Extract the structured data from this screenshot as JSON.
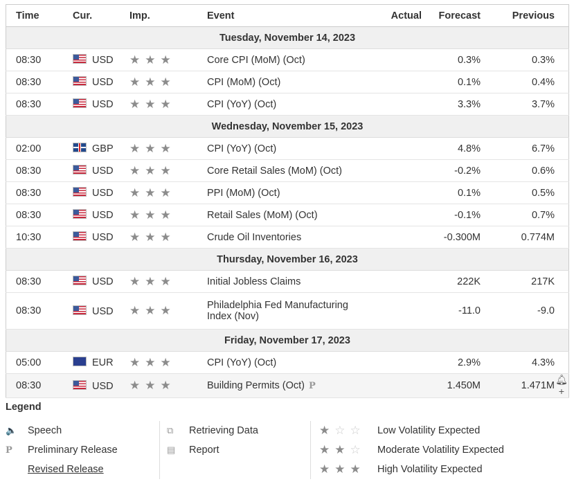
{
  "columns": {
    "time": "Time",
    "cur": "Cur.",
    "imp": "Imp.",
    "event": "Event",
    "actual": "Actual",
    "forecast": "Forecast",
    "previous": "Previous"
  },
  "days": [
    {
      "date": "Tuesday, November 14, 2023",
      "events": [
        {
          "time": "08:30",
          "flag": "us",
          "cur": "USD",
          "stars": "★★★",
          "event": "Core CPI (MoM) (Oct)",
          "actual": "",
          "forecast": "0.3%",
          "previous": "0.3%"
        },
        {
          "time": "08:30",
          "flag": "us",
          "cur": "USD",
          "stars": "★★★",
          "event": "CPI (MoM) (Oct)",
          "actual": "",
          "forecast": "0.1%",
          "previous": "0.4%"
        },
        {
          "time": "08:30",
          "flag": "us",
          "cur": "USD",
          "stars": "★★★",
          "event": "CPI (YoY) (Oct)",
          "actual": "",
          "forecast": "3.3%",
          "previous": "3.7%"
        }
      ]
    },
    {
      "date": "Wednesday, November 15, 2023",
      "events": [
        {
          "time": "02:00",
          "flag": "gb",
          "cur": "GBP",
          "stars": "★★★",
          "event": "CPI (YoY) (Oct)",
          "actual": "",
          "forecast": "4.8%",
          "previous": "6.7%"
        },
        {
          "time": "08:30",
          "flag": "us",
          "cur": "USD",
          "stars": "★★★",
          "event": "Core Retail Sales (MoM) (Oct)",
          "actual": "",
          "forecast": "-0.2%",
          "previous": "0.6%"
        },
        {
          "time": "08:30",
          "flag": "us",
          "cur": "USD",
          "stars": "★★★",
          "event": "PPI (MoM) (Oct)",
          "actual": "",
          "forecast": "0.1%",
          "previous": "0.5%"
        },
        {
          "time": "08:30",
          "flag": "us",
          "cur": "USD",
          "stars": "★★★",
          "event": "Retail Sales (MoM) (Oct)",
          "actual": "",
          "forecast": "-0.1%",
          "previous": "0.7%"
        },
        {
          "time": "10:30",
          "flag": "us",
          "cur": "USD",
          "stars": "★★★",
          "event": "Crude Oil Inventories",
          "actual": "",
          "forecast": "-0.300M",
          "previous": "0.774M"
        }
      ]
    },
    {
      "date": "Thursday, November 16, 2023",
      "events": [
        {
          "time": "08:30",
          "flag": "us",
          "cur": "USD",
          "stars": "★★★",
          "event": "Initial Jobless Claims",
          "actual": "",
          "forecast": "222K",
          "previous": "217K"
        },
        {
          "time": "08:30",
          "flag": "us",
          "cur": "USD",
          "stars": "★★★",
          "event": "Philadelphia Fed Manufacturing Index (Nov)",
          "actual": "",
          "forecast": "-11.0",
          "previous": "-9.0"
        }
      ]
    },
    {
      "date": "Friday, November 17, 2023",
      "events": [
        {
          "time": "05:00",
          "flag": "eu",
          "cur": "EUR",
          "stars": "★★★",
          "event": "CPI (YoY) (Oct)",
          "actual": "",
          "forecast": "2.9%",
          "previous": "4.3%"
        },
        {
          "time": "08:30",
          "flag": "us",
          "cur": "USD",
          "stars": "★★★",
          "event": "Building Permits (Oct)",
          "prelim_icon": "P",
          "actual": "",
          "forecast": "1.450M",
          "previous": "1.471M",
          "alert_icon": "bell-plus-icon"
        }
      ]
    }
  ],
  "legend": {
    "title": "Legend",
    "speech": "Speech",
    "preliminary": "Preliminary Release",
    "revised": "Revised Release",
    "retrieving": "Retrieving Data",
    "report": "Report",
    "low": "Low Volatility Expected",
    "moderate": "Moderate Volatility Expected",
    "high": "High Volatility Expected"
  }
}
